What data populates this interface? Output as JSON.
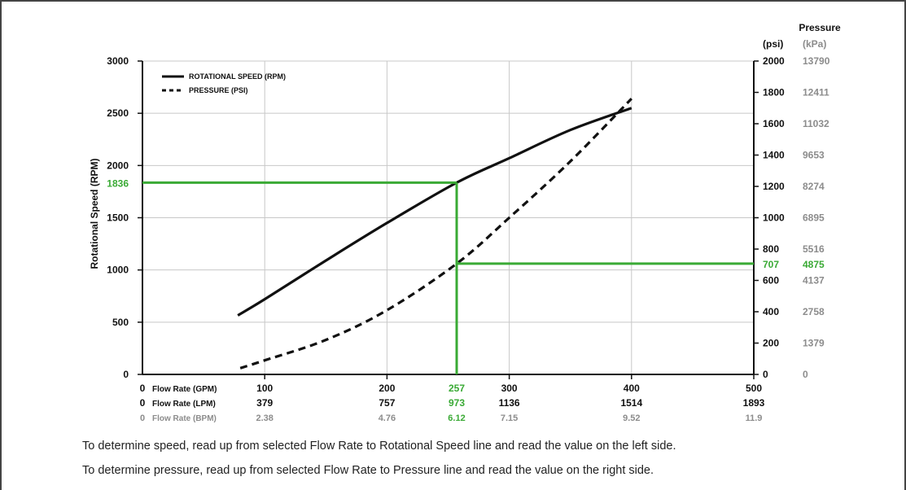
{
  "colors": {
    "highlight": "#3aaa35",
    "axis": "#111111",
    "grid": "#c8c8c8",
    "secondary": "#8c8c8c"
  },
  "chart_data": {
    "type": "line",
    "legend_position": "top-left",
    "grid": true,
    "left_axis": {
      "label": "Rotational Speed (RPM)",
      "range": [
        0,
        3000
      ],
      "ticks": [
        "0",
        "500",
        "1000",
        "1500",
        "2000",
        "2500",
        "3000"
      ],
      "highlight": "1836"
    },
    "right_axis": {
      "title": "Pressure",
      "psi_header": "(psi)",
      "kpa_header": "(kPa)",
      "range_psi": [
        0,
        2000
      ],
      "ticks": [
        {
          "psi": "0",
          "kpa": "0"
        },
        {
          "psi": "200",
          "kpa": "1379"
        },
        {
          "psi": "400",
          "kpa": "2758"
        },
        {
          "psi": "600",
          "kpa": "4137"
        },
        {
          "psi": "800",
          "kpa": "5516"
        },
        {
          "psi": "1000",
          "kpa": "6895"
        },
        {
          "psi": "1200",
          "kpa": "8274"
        },
        {
          "psi": "1400",
          "kpa": "9653"
        },
        {
          "psi": "1600",
          "kpa": "11032"
        },
        {
          "psi": "1800",
          "kpa": "12411"
        },
        {
          "psi": "2000",
          "kpa": "13790"
        }
      ],
      "highlight_psi": "707",
      "highlight_kpa": "4875"
    },
    "x_axis": {
      "range_gpm": [
        0,
        500
      ],
      "rows": [
        {
          "zero": "0",
          "label": "Flow Rate (GPM)",
          "values": [
            "100",
            "200",
            "300",
            "400",
            "500"
          ]
        },
        {
          "zero": "0",
          "label": "Flow Rate (LPM)",
          "values": [
            "379",
            "757",
            "1136",
            "1514",
            "1893"
          ]
        },
        {
          "zero": "0",
          "label": "Flow Rate (BPM)",
          "values": [
            "2.38",
            "4.76",
            "7.15",
            "9.52",
            "11.9"
          ]
        }
      ],
      "highlight": {
        "gpm": "257",
        "lpm": "973",
        "bpm": "6.12"
      }
    },
    "series": [
      {
        "name": "ROTATIONAL SPEED (RPM)",
        "axis": "left",
        "style": "solid",
        "x": [
          78,
          100,
          150,
          200,
          257,
          300,
          350,
          400
        ],
        "y": [
          565,
          720,
          1090,
          1450,
          1836,
          2070,
          2340,
          2550
        ]
      },
      {
        "name": "PRESSURE (PSI)",
        "axis": "right",
        "style": "dashed",
        "x": [
          80,
          100,
          150,
          200,
          257,
          300,
          350,
          400
        ],
        "y": [
          40,
          90,
          220,
          410,
          707,
          1000,
          1360,
          1760
        ]
      }
    ],
    "highlight_point": {
      "x": 257,
      "rpm": 1836,
      "psi": 707
    }
  },
  "notes": {
    "speed": "To determine speed, read up from selected Flow Rate to Rotational Speed line and read the value on the left side.",
    "pressure": "To determine pressure, read up from selected Flow Rate to Pressure line and read the value on the right side."
  }
}
